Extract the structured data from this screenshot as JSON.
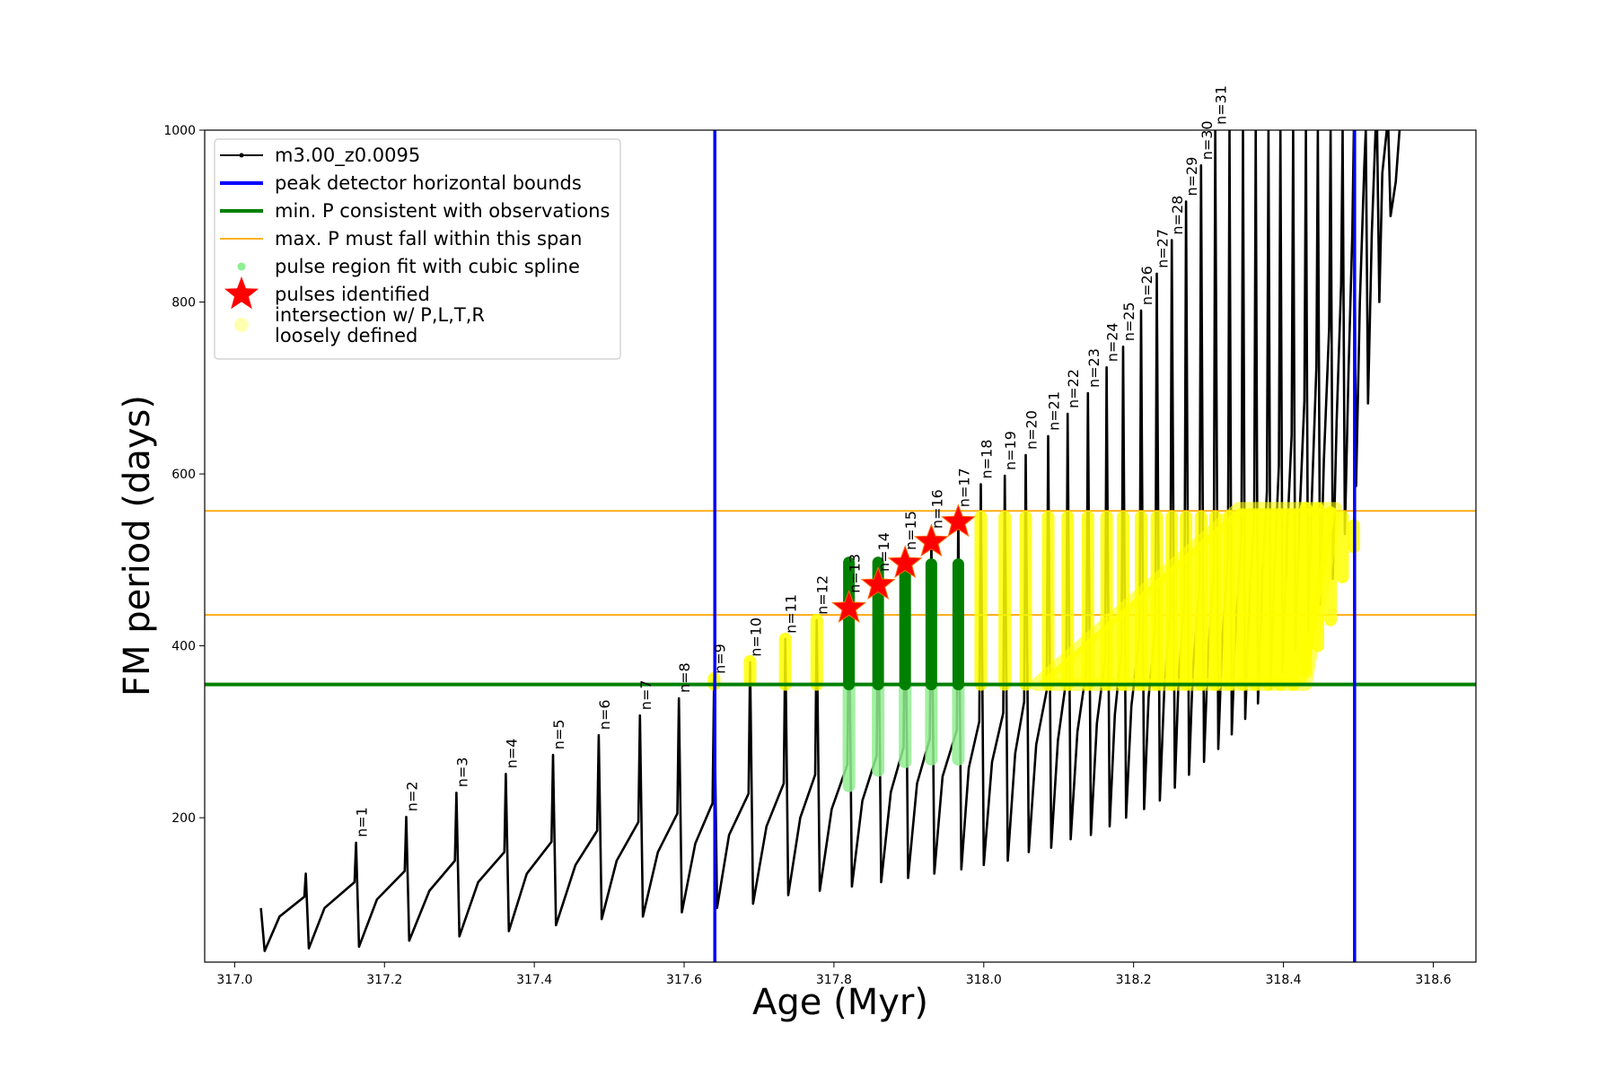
{
  "chart_data": {
    "type": "line",
    "xlabel": "Age (Myr)",
    "ylabel": "FM period (days)",
    "xlim": [
      316.96,
      318.657
    ],
    "ylim": [
      32,
      1000
    ],
    "xticks": [
      {
        "value": 317.0,
        "label": "317.0"
      },
      {
        "value": 317.2,
        "label": "317.2"
      },
      {
        "value": 317.4,
        "label": "317.4"
      },
      {
        "value": 317.6,
        "label": "317.6"
      },
      {
        "value": 317.8,
        "label": "317.8"
      },
      {
        "value": 318.0,
        "label": "318.0"
      },
      {
        "value": 318.2,
        "label": "318.2"
      },
      {
        "value": 318.4,
        "label": "318.4"
      },
      {
        "value": 318.6,
        "label": "318.6"
      }
    ],
    "yticks": [
      200,
      400,
      600,
      800,
      1000
    ],
    "legend": "upper left",
    "series": [
      {
        "name": "m3.00_z0.0095",
        "kind": "line",
        "color": "#000000",
        "x": [
          317.035,
          317.04,
          317.06,
          317.093,
          317.095,
          317.099,
          317.12,
          317.16,
          317.162,
          317.166,
          317.19,
          317.227,
          317.229,
          317.233,
          317.26,
          317.294,
          317.296,
          317.3,
          317.325,
          317.36,
          317.362,
          317.366,
          317.39,
          317.423,
          317.425,
          317.429,
          317.455,
          317.484,
          317.486,
          317.49,
          317.51,
          317.539,
          317.541,
          317.545,
          317.565,
          317.591,
          317.593,
          317.597,
          317.615,
          317.638,
          317.64,
          317.644,
          317.66,
          317.686,
          317.688,
          317.692,
          317.71,
          317.733,
          317.735,
          317.739,
          317.755,
          317.775,
          317.777,
          317.781,
          317.797,
          317.818,
          317.82,
          317.824,
          317.838,
          317.857,
          317.859,
          317.863,
          317.876,
          317.893,
          317.895,
          317.899,
          317.911,
          317.928,
          317.93,
          317.934,
          317.945,
          317.964,
          317.966,
          317.97,
          317.98,
          317.994,
          317.996,
          318.0,
          318.011,
          318.026,
          318.028,
          318.032,
          318.042,
          318.054,
          318.056,
          318.06,
          318.07,
          318.084,
          318.086,
          318.09,
          318.099,
          318.11,
          318.112,
          318.116,
          318.125,
          318.137,
          318.139,
          318.143,
          318.151,
          318.162,
          318.164,
          318.168,
          318.175,
          318.184,
          318.186,
          318.19,
          318.197,
          318.208,
          318.21,
          318.214,
          318.22,
          318.229,
          318.231,
          318.235,
          318.241,
          318.249,
          318.251,
          318.255,
          318.26,
          318.268,
          318.27,
          318.274,
          318.279,
          318.288,
          318.29,
          318.294,
          318.299,
          318.307,
          318.309,
          318.313,
          318.318,
          318.326,
          318.328,
          318.331,
          318.336,
          318.344,
          318.346,
          318.349,
          318.354,
          318.361,
          318.363,
          318.366,
          318.371,
          318.378,
          318.38,
          318.383,
          318.388,
          318.394,
          318.396,
          318.399,
          318.404,
          318.411,
          318.413,
          318.416,
          318.421,
          318.428,
          318.43,
          318.433,
          318.438,
          318.444,
          318.446,
          318.449,
          318.454,
          318.461,
          318.463,
          318.466,
          318.471,
          318.477,
          318.479,
          318.482,
          318.487,
          318.492,
          318.494,
          318.497,
          318.502,
          318.508,
          318.51,
          318.513,
          318.518,
          318.523,
          318.525,
          318.528,
          318.532,
          318.538,
          318.54,
          318.543,
          318.55,
          318.555
        ],
        "values": [
          95,
          45,
          85,
          108,
          135,
          48,
          95,
          125,
          171,
          50,
          105,
          138,
          201,
          57,
          115,
          150,
          229,
          62,
          125,
          160,
          251,
          68,
          135,
          172,
          273,
          75,
          145,
          185,
          296,
          82,
          150,
          195,
          319,
          85,
          160,
          205,
          339,
          90,
          170,
          217,
          361,
          95,
          180,
          228,
          381,
          100,
          190,
          240,
          408,
          110,
          200,
          250,
          430,
          115,
          210,
          262,
          455,
          120,
          220,
          272,
          480,
          125,
          230,
          282,
          505,
          130,
          240,
          292,
          530,
          135,
          248,
          302,
          555,
          140,
          258,
          312,
          588,
          145,
          265,
          322,
          598,
          150,
          275,
          335,
          622,
          160,
          285,
          348,
          644,
          165,
          290,
          360,
          670,
          175,
          300,
          372,
          694,
          180,
          310,
          385,
          724,
          190,
          320,
          398,
          748,
          200,
          330,
          412,
          790,
          210,
          340,
          426,
          833,
          220,
          350,
          440,
          872,
          235,
          360,
          455,
          917,
          250,
          370,
          470,
          959,
          265,
          385,
          488,
          1000,
          280,
          400,
          505,
          1000,
          297,
          420,
          525,
          1000,
          315,
          440,
          550,
          1000,
          333,
          460,
          580,
          1000,
          350,
          485,
          610,
          1000,
          370,
          510,
          645,
          1000,
          395,
          540,
          685,
          1000,
          418,
          575,
          725,
          1000,
          448,
          615,
          770,
          1000,
          478,
          660,
          820,
          1000,
          530,
          720,
          880,
          1000,
          586,
          800,
          960,
          1000,
          682,
          880,
          1000,
          1000,
          800,
          950,
          1000,
          1000,
          900,
          940,
          1000
        ]
      },
      {
        "name": "peak detector horizontal bounds",
        "kind": "vline",
        "color": "#0000ff",
        "x": [
          317.641,
          318.495
        ]
      },
      {
        "name": "min. P consistent with observations",
        "kind": "hline",
        "color": "#008000",
        "values": [
          355
        ]
      },
      {
        "name": "max. P must fall within this span",
        "kind": "hline",
        "color": "#ffa500",
        "values": [
          436,
          557
        ]
      },
      {
        "name": "pulse region fit with cubic spline",
        "kind": "range",
        "color": "#90ee90",
        "x": [
          317.82,
          317.859,
          317.895,
          317.93,
          317.966
        ],
        "low": [
          237,
          255,
          265,
          268,
          268
        ],
        "high": [
          355,
          355,
          355,
          355,
          355
        ]
      },
      {
        "name": "pulses identified",
        "kind": "star",
        "color": "#ff0000",
        "x": [
          317.82,
          317.859,
          317.895,
          317.93,
          317.966
        ],
        "values": [
          444,
          471,
          496,
          521,
          544
        ]
      },
      {
        "name": "intersection w/ P,L,T,R\nloosely defined",
        "kind": "range",
        "color": "#ffff00",
        "x": [
          317.64,
          317.688,
          317.735,
          317.777,
          317.996,
          318.028,
          318.056,
          318.086,
          318.112,
          318.139,
          318.164,
          318.186,
          318.21,
          318.231,
          318.251,
          318.27,
          318.29,
          318.309,
          318.328,
          318.346,
          318.363,
          318.38,
          318.396,
          318.413,
          318.43,
          318.446,
          318.463,
          318.479,
          318.494
        ],
        "low": [
          355,
          360,
          355,
          355,
          355,
          355,
          355,
          355,
          355,
          355,
          355,
          355,
          355,
          355,
          355,
          355,
          355,
          355,
          355,
          355,
          355,
          355,
          355,
          355,
          370,
          400,
          430,
          480,
          515
        ],
        "high": [
          362,
          382,
          408,
          430,
          550,
          550,
          550,
          550,
          550,
          550,
          550,
          550,
          550,
          550,
          550,
          550,
          550,
          550,
          550,
          550,
          550,
          550,
          550,
          550,
          560,
          560,
          555,
          550,
          540
        ],
        "region": {
          "x": [
            318.07,
            318.34,
            318.47,
            318.43,
            318.35
          ],
          "values": [
            355,
            560,
            560,
            355,
            355
          ]
        }
      }
    ],
    "green_bands": {
      "color": "#008000",
      "x": [
        317.82,
        317.859,
        317.895,
        317.93,
        317.966
      ],
      "low": [
        355,
        355,
        355,
        355,
        355
      ],
      "high": [
        497,
        497,
        495,
        495,
        495
      ]
    },
    "annotations": [
      {
        "text": "n=1",
        "x": 317.162,
        "y": 171
      },
      {
        "text": "n=2",
        "x": 317.229,
        "y": 201
      },
      {
        "text": "n=3",
        "x": 317.296,
        "y": 229
      },
      {
        "text": "n=4",
        "x": 317.362,
        "y": 251
      },
      {
        "text": "n=5",
        "x": 317.425,
        "y": 273
      },
      {
        "text": "n=6",
        "x": 317.486,
        "y": 296
      },
      {
        "text": "n=7",
        "x": 317.541,
        "y": 319
      },
      {
        "text": "n=8",
        "x": 317.593,
        "y": 339
      },
      {
        "text": "n=9",
        "x": 317.64,
        "y": 361
      },
      {
        "text": "n=10",
        "x": 317.688,
        "y": 381
      },
      {
        "text": "n=11",
        "x": 317.735,
        "y": 408
      },
      {
        "text": "n=12",
        "x": 317.777,
        "y": 430
      },
      {
        "text": "n=13",
        "x": 317.82,
        "y": 455
      },
      {
        "text": "n=14",
        "x": 317.859,
        "y": 480
      },
      {
        "text": "n=15",
        "x": 317.895,
        "y": 505
      },
      {
        "text": "n=16",
        "x": 317.93,
        "y": 530
      },
      {
        "text": "n=17",
        "x": 317.966,
        "y": 555
      },
      {
        "text": "n=18",
        "x": 317.996,
        "y": 588
      },
      {
        "text": "n=19",
        "x": 318.028,
        "y": 598
      },
      {
        "text": "n=20",
        "x": 318.056,
        "y": 622
      },
      {
        "text": "n=21",
        "x": 318.086,
        "y": 644
      },
      {
        "text": "n=22",
        "x": 318.112,
        "y": 670
      },
      {
        "text": "n=23",
        "x": 318.139,
        "y": 694
      },
      {
        "text": "n=24",
        "x": 318.164,
        "y": 724
      },
      {
        "text": "n=25",
        "x": 318.186,
        "y": 748
      },
      {
        "text": "n=26",
        "x": 318.21,
        "y": 790
      },
      {
        "text": "n=27",
        "x": 318.231,
        "y": 833
      },
      {
        "text": "n=28",
        "x": 318.251,
        "y": 872
      },
      {
        "text": "n=29",
        "x": 318.27,
        "y": 917
      },
      {
        "text": "n=30",
        "x": 318.29,
        "y": 959
      },
      {
        "text": "n=31",
        "x": 318.309,
        "y": 1000
      }
    ]
  }
}
